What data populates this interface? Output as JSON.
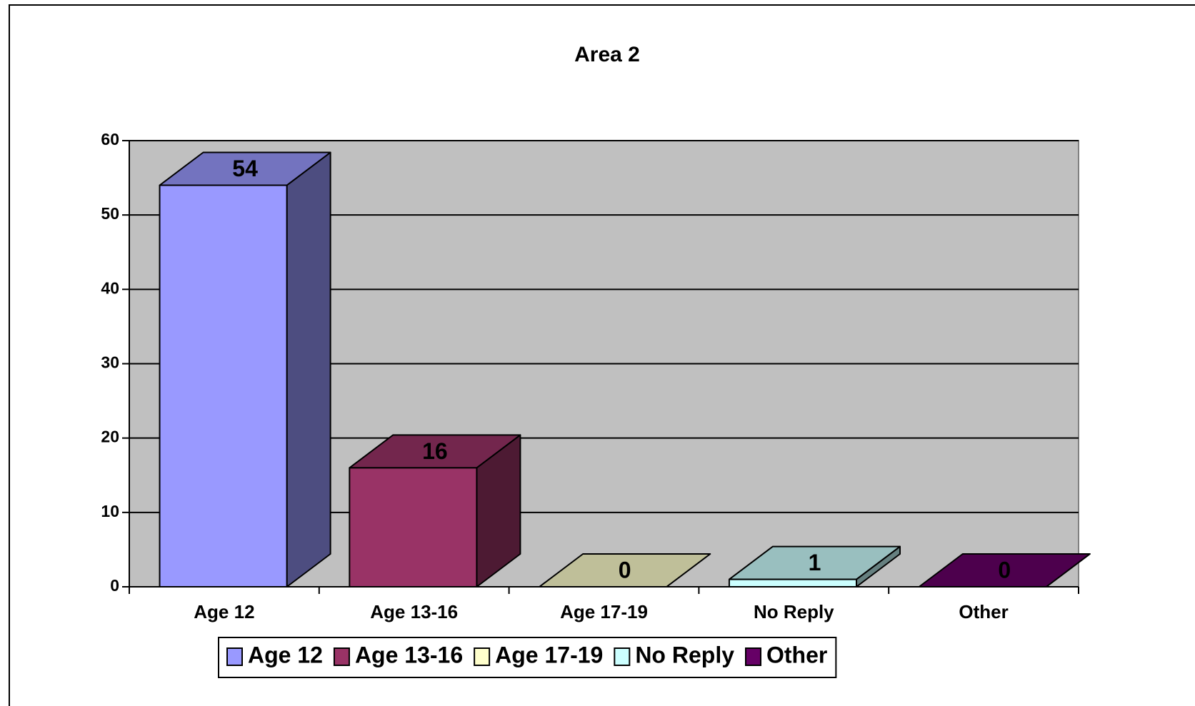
{
  "chart_data": {
    "type": "bar3d",
    "title": "Area 2",
    "categories": [
      "Age 12",
      "Age 13-16",
      "Age 17-19",
      "No Reply",
      "Other"
    ],
    "values": [
      54,
      16,
      0,
      1,
      0
    ],
    "colors": [
      "#9999ff",
      "#993366",
      "#ffffcc",
      "#ccffff",
      "#660066"
    ],
    "ylim": [
      0,
      60
    ],
    "yticks": [
      0,
      10,
      20,
      30,
      40,
      50,
      60
    ],
    "grid": true,
    "legend": "bottom"
  }
}
